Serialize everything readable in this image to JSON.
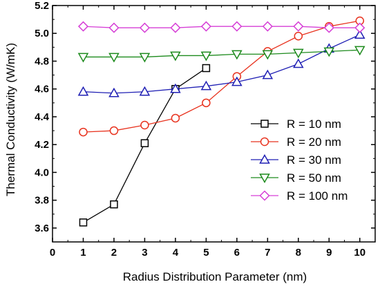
{
  "chart_data": {
    "type": "line",
    "xlabel": "Radius Distribution Parameter (nm)",
    "ylabel": "Thermal Conductivity (W/mK)",
    "xlim": [
      0,
      10.5
    ],
    "ylim": [
      3.5,
      5.2
    ],
    "xticks": [
      "0",
      "1",
      "2",
      "3",
      "4",
      "5",
      "6",
      "7",
      "8",
      "9",
      "10"
    ],
    "yticks": [
      "3.6",
      "3.8",
      "4.0",
      "4.2",
      "4.4",
      "4.6",
      "4.8",
      "5.0",
      "5.2"
    ],
    "grid": false,
    "legend_position": "bottom-right",
    "series": [
      {
        "name": "R = 10 nm",
        "color": "#000000",
        "marker": "square",
        "x": [
          1,
          2,
          3,
          4,
          5
        ],
        "y": [
          3.64,
          3.77,
          4.21,
          4.6,
          4.75
        ]
      },
      {
        "name": "R = 20 nm",
        "color": "#e8321e",
        "marker": "circle",
        "x": [
          1,
          2,
          3,
          4,
          5,
          6,
          7,
          8,
          9,
          10
        ],
        "y": [
          4.29,
          4.3,
          4.34,
          4.39,
          4.5,
          4.69,
          4.87,
          4.98,
          5.05,
          5.09
        ]
      },
      {
        "name": "R = 30 nm",
        "color": "#1f1fb4",
        "marker": "triangle-up",
        "x": [
          1,
          2,
          3,
          4,
          5,
          6,
          7,
          8,
          9,
          10
        ],
        "y": [
          4.58,
          4.57,
          4.58,
          4.6,
          4.62,
          4.65,
          4.7,
          4.78,
          4.89,
          4.99
        ]
      },
      {
        "name": "R = 50 nm",
        "color": "#1c8a1c",
        "marker": "triangle-down",
        "x": [
          1,
          2,
          3,
          4,
          5,
          6,
          7,
          8,
          9,
          10
        ],
        "y": [
          4.83,
          4.83,
          4.83,
          4.84,
          4.84,
          4.85,
          4.85,
          4.86,
          4.87,
          4.88
        ]
      },
      {
        "name": "R = 100 nm",
        "color": "#d63fd6",
        "marker": "diamond",
        "x": [
          1,
          2,
          3,
          4,
          5,
          6,
          7,
          8,
          9,
          10
        ],
        "y": [
          5.05,
          5.04,
          5.04,
          5.04,
          5.05,
          5.05,
          5.05,
          5.05,
          5.04,
          5.04
        ]
      }
    ]
  }
}
